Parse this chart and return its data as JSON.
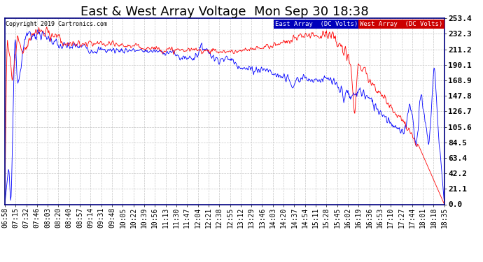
{
  "title": "East & West Array Voltage  Mon Sep 30 18:38",
  "copyright": "Copyright 2019 Cartronics.com",
  "legend_east": "East Array  (DC Volts)",
  "legend_west": "West Array  (DC Volts)",
  "east_color": "#0000ff",
  "west_color": "#ff0000",
  "legend_east_bg": "#0000bb",
  "legend_west_bg": "#cc0000",
  "yticks": [
    0.0,
    21.1,
    42.2,
    63.4,
    84.5,
    105.6,
    126.7,
    147.8,
    168.9,
    190.1,
    211.2,
    232.3,
    253.4
  ],
  "ymin": 0.0,
  "ymax": 253.4,
  "background_color": "#ffffff",
  "plot_bg_color": "#ffffff",
  "grid_color": "#c0c0c0",
  "title_fontsize": 13,
  "tick_fontsize": 7,
  "xticks": [
    "06:58",
    "07:15",
    "07:32",
    "07:46",
    "08:03",
    "08:20",
    "08:40",
    "08:57",
    "09:14",
    "09:31",
    "09:48",
    "10:05",
    "10:22",
    "10:39",
    "10:56",
    "11:13",
    "11:30",
    "11:47",
    "12:04",
    "12:21",
    "12:38",
    "12:55",
    "13:12",
    "13:29",
    "13:46",
    "14:03",
    "14:20",
    "14:37",
    "14:54",
    "15:11",
    "15:28",
    "15:45",
    "16:02",
    "16:19",
    "16:36",
    "16:53",
    "17:10",
    "17:27",
    "17:44",
    "18:01",
    "18:18",
    "18:35"
  ]
}
